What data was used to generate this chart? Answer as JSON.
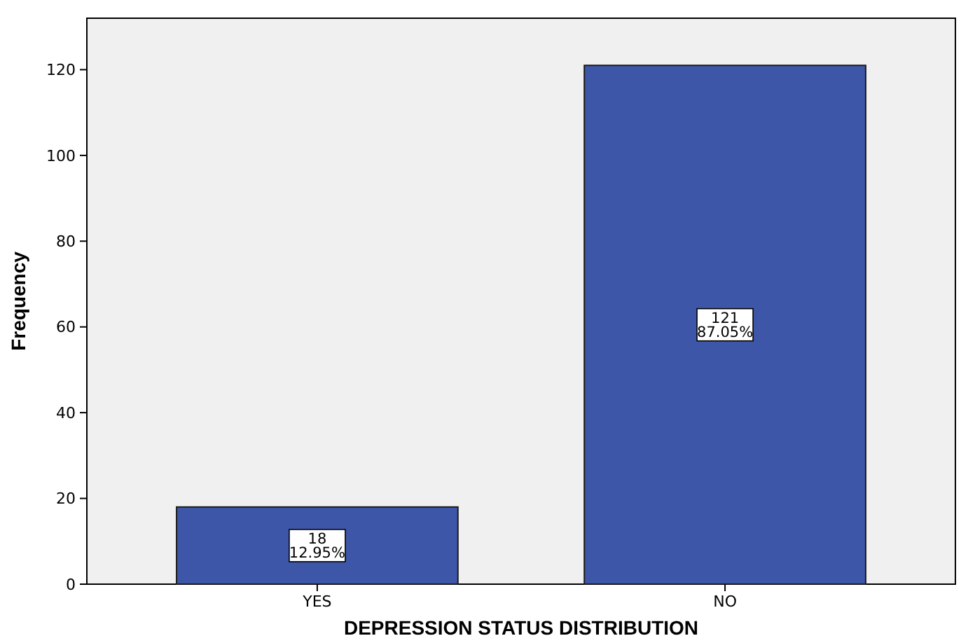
{
  "chart_data": {
    "type": "bar",
    "xlabel": "DEPRESSION STATUS DISTRIBUTION",
    "ylabel": "Frequency",
    "categories": [
      "YES",
      "NO"
    ],
    "values": [
      18,
      121
    ],
    "value_labels": [
      "18\n12.95%",
      "121\n87.05%"
    ],
    "color": "#3e56a8",
    "ylim": [
      0,
      132
    ],
    "yticks": [
      0,
      20,
      40,
      60,
      80,
      100,
      120
    ],
    "grid": false
  }
}
